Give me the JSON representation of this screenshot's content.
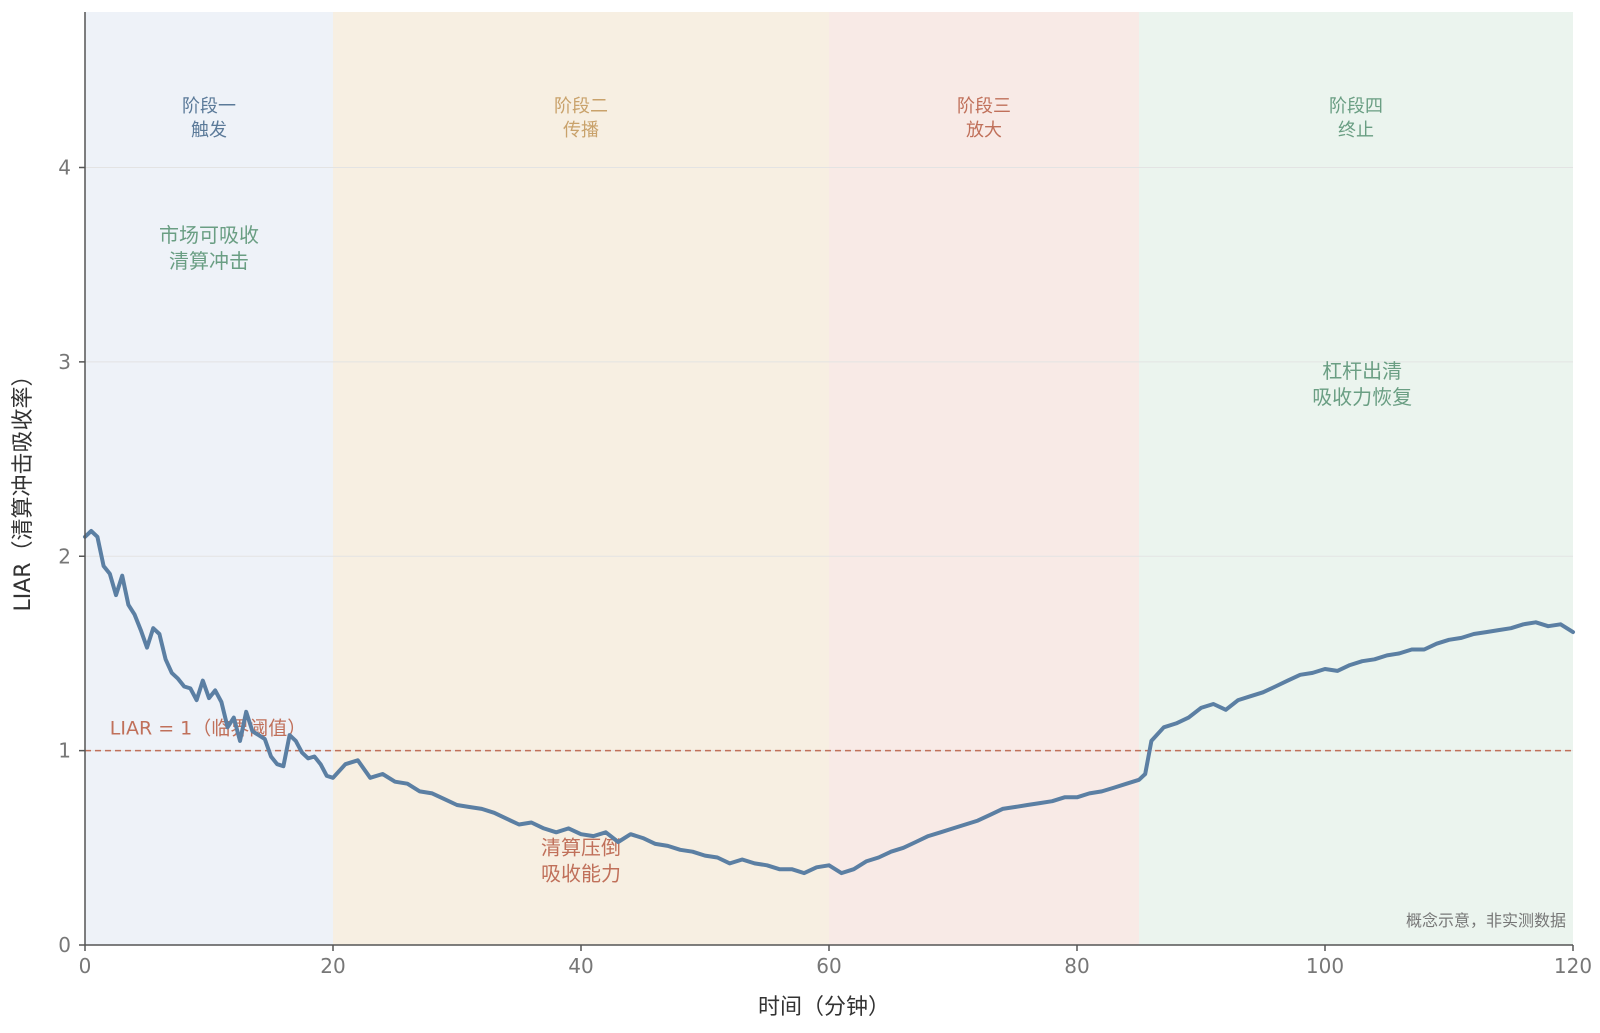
{
  "chart_data": {
    "type": "line",
    "xlabel": "时间（分钟）",
    "ylabel": "LIAR（清算冲击吸收率）",
    "xlim": [
      0,
      120
    ],
    "ylim": [
      0,
      4.8
    ],
    "xticks": [
      0,
      20,
      40,
      60,
      80,
      100,
      120
    ],
    "yticks": [
      0,
      1,
      2,
      3,
      4
    ],
    "grid": "horizontal",
    "threshold": {
      "y": 1,
      "label": "LIAR = 1（临界阈值）",
      "color": "#c0705a"
    },
    "phases": [
      {
        "x0": 0,
        "x1": 20,
        "line1": "阶段一",
        "line2": "触发",
        "fill": "#eef2f8",
        "color": "#5b7a99"
      },
      {
        "x0": 20,
        "x1": 60,
        "line1": "阶段二",
        "line2": "传播",
        "fill": "#f7efe2",
        "color": "#c9a26b"
      },
      {
        "x0": 60,
        "x1": 85,
        "line1": "阶段三",
        "line2": "放大",
        "fill": "#f8eae6",
        "color": "#c0705a"
      },
      {
        "x0": 85,
        "x1": 120,
        "line1": "阶段四",
        "line2": "终止",
        "fill": "#ebf4ee",
        "color": "#6a9e83"
      }
    ],
    "annotations": [
      {
        "x": 10,
        "y": 3.55,
        "lines": [
          "市场可吸收",
          "清算冲击"
        ],
        "color": "#6a9e83"
      },
      {
        "x": 40,
        "y": 0.4,
        "lines": [
          "清算压倒",
          "吸收能力"
        ],
        "color": "#c0705a"
      },
      {
        "x": 103,
        "y": 2.85,
        "lines": [
          "杠杆出清",
          "吸收力恢复"
        ],
        "color": "#6a9e83"
      }
    ],
    "note": "概念示意，非实测数据",
    "series": [
      {
        "color": "#5b7fa3",
        "x": [
          0,
          0.5,
          1,
          1.5,
          2,
          2.5,
          3,
          3.5,
          4,
          4.5,
          5,
          5.5,
          6,
          6.5,
          7,
          7.5,
          8,
          8.5,
          9,
          9.5,
          10,
          10.5,
          11,
          11.5,
          12,
          12.5,
          13,
          13.5,
          14,
          14.5,
          15,
          15.5,
          16,
          16.5,
          17,
          17.5,
          18,
          18.5,
          19,
          19.5,
          20,
          21,
          22,
          23,
          24,
          25,
          26,
          27,
          28,
          29,
          30,
          31,
          32,
          33,
          34,
          35,
          36,
          37,
          38,
          39,
          40,
          41,
          42,
          43,
          44,
          45,
          46,
          47,
          48,
          49,
          50,
          51,
          52,
          53,
          54,
          55,
          56,
          57,
          58,
          59,
          60,
          61,
          62,
          63,
          64,
          65,
          66,
          67,
          68,
          69,
          70,
          71,
          72,
          73,
          74,
          75,
          76,
          77,
          78,
          79,
          80,
          81,
          82,
          83,
          84,
          85,
          85.5,
          86,
          87,
          88,
          89,
          90,
          91,
          92,
          93,
          94,
          95,
          96,
          97,
          98,
          99,
          100,
          101,
          102,
          103,
          104,
          105,
          106,
          107,
          108,
          109,
          110,
          111,
          112,
          113,
          114,
          115,
          116,
          117,
          118,
          119,
          120
        ],
        "y": [
          2.1,
          2.13,
          2.1,
          1.95,
          1.91,
          1.8,
          1.9,
          1.75,
          1.7,
          1.62,
          1.53,
          1.63,
          1.6,
          1.47,
          1.4,
          1.37,
          1.33,
          1.32,
          1.26,
          1.36,
          1.27,
          1.31,
          1.25,
          1.12,
          1.17,
          1.05,
          1.2,
          1.1,
          1.08,
          1.06,
          0.97,
          0.93,
          0.92,
          1.08,
          1.05,
          0.99,
          0.96,
          0.97,
          0.93,
          0.87,
          0.86,
          0.93,
          0.95,
          0.86,
          0.88,
          0.84,
          0.83,
          0.79,
          0.78,
          0.75,
          0.72,
          0.71,
          0.7,
          0.68,
          0.65,
          0.62,
          0.63,
          0.6,
          0.58,
          0.6,
          0.57,
          0.56,
          0.58,
          0.53,
          0.57,
          0.55,
          0.52,
          0.51,
          0.49,
          0.48,
          0.46,
          0.45,
          0.42,
          0.44,
          0.42,
          0.41,
          0.39,
          0.39,
          0.37,
          0.4,
          0.41,
          0.37,
          0.39,
          0.43,
          0.45,
          0.48,
          0.5,
          0.53,
          0.56,
          0.58,
          0.6,
          0.62,
          0.64,
          0.67,
          0.7,
          0.71,
          0.72,
          0.73,
          0.74,
          0.76,
          0.76,
          0.78,
          0.79,
          0.81,
          0.83,
          0.85,
          0.88,
          1.05,
          1.12,
          1.14,
          1.17,
          1.22,
          1.24,
          1.21,
          1.26,
          1.28,
          1.3,
          1.33,
          1.36,
          1.39,
          1.4,
          1.42,
          1.41,
          1.44,
          1.46,
          1.47,
          1.49,
          1.5,
          1.52,
          1.52,
          1.55,
          1.57,
          1.58,
          1.6,
          1.61,
          1.62,
          1.63,
          1.65,
          1.66,
          1.64,
          1.65,
          1.61
        ]
      }
    ]
  }
}
